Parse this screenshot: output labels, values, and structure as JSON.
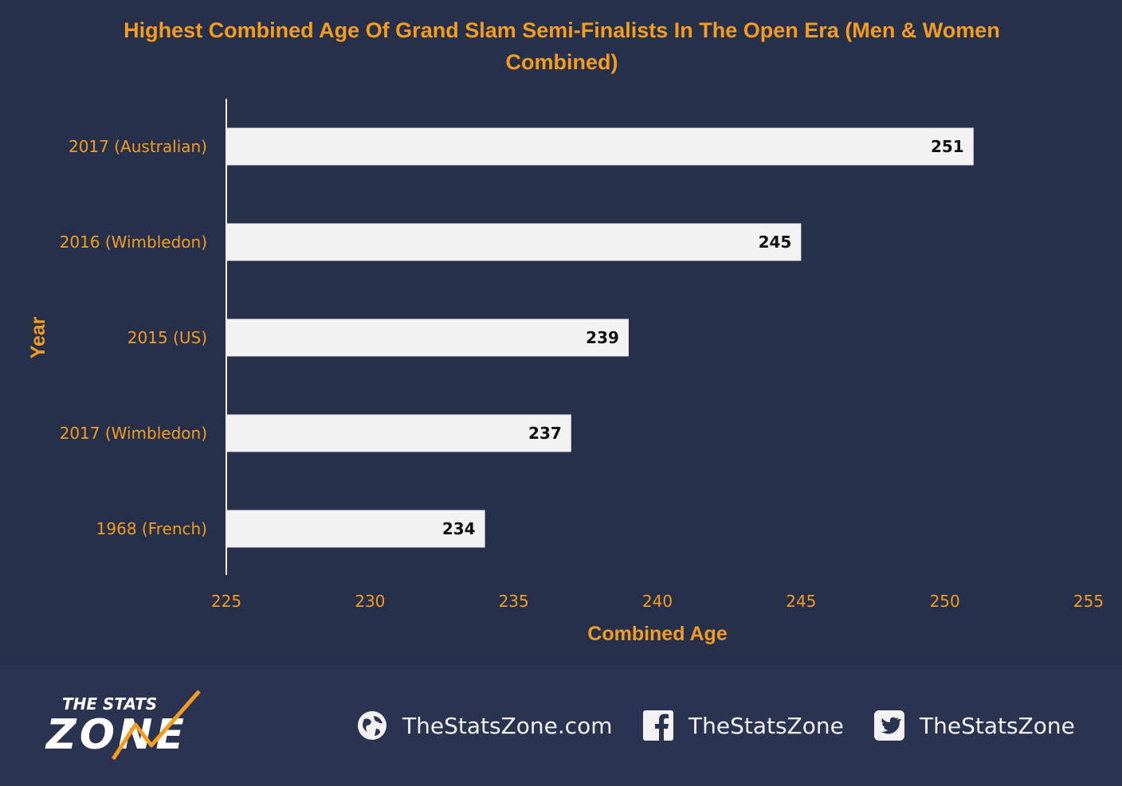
{
  "chart_data": {
    "type": "bar",
    "orientation": "horizontal",
    "title": "Highest Combined  Age Of Grand Slam Semi-Finalists  In The Open Era (Men & Women Combined)",
    "xlabel": "Combined Age",
    "ylabel": "Year",
    "categories": [
      "2017 (Australian)",
      "2016 (Wimbledon)",
      "2015 (US)",
      "2017 (Wimbledon)",
      "1968 (French)"
    ],
    "values": [
      251,
      245,
      239,
      237,
      234
    ],
    "xlim": [
      225,
      255
    ],
    "xticks": [
      "225",
      "230",
      "235",
      "240",
      "245",
      "250",
      "255"
    ],
    "grid": false,
    "colors": {
      "bar": "#f2f2f2",
      "text": "#f39c1f",
      "background": "#26304a"
    }
  },
  "footer": {
    "logo_text_top": "THE STATS",
    "logo_text_bottom": "ZONE",
    "website": "TheStatsZone.com",
    "facebook": "TheStatsZone",
    "twitter": "TheStatsZone",
    "icons": [
      "globe-icon",
      "facebook-icon",
      "twitter-icon"
    ]
  }
}
